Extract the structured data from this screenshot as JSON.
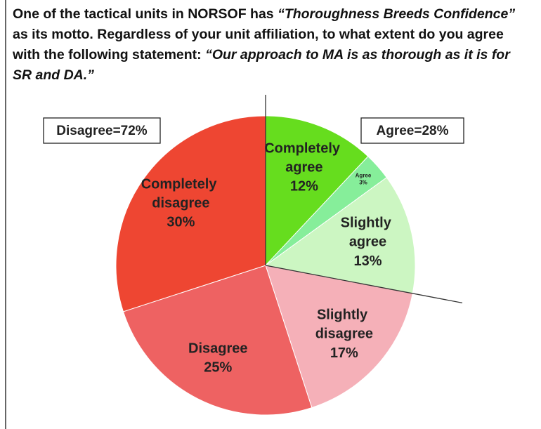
{
  "chart_data": {
    "type": "pie",
    "title_parts": [
      {
        "text": "One of the tactical units in NORSOF has ",
        "italic": false
      },
      {
        "text": "“Thoroughness Breeds Confidence”",
        "italic": true
      },
      {
        "text": " as its motto. Regardless of your unit affiliation, to what extent do you agree with the following statement: ",
        "italic": false
      },
      {
        "text": "“Our approach to MA is as thorough as it is for SR and DA.”",
        "italic": true
      }
    ],
    "categories": [
      "Completely agree",
      "Agree",
      "Slightly agree",
      "Slightly disagree",
      "Disagree",
      "Completely disagree"
    ],
    "values": [
      12,
      3,
      13,
      17,
      25,
      30
    ],
    "value_labels": [
      "12%",
      "3%",
      "13%",
      "17%",
      "25%",
      "30%"
    ],
    "colors": [
      "#66dd1e",
      "#86ee9a",
      "#ccf6c2",
      "#f5b0b8",
      "#ee6262",
      "#ee4632"
    ],
    "annotations": [
      "Disagree=72%",
      "Agree=28%"
    ]
  }
}
